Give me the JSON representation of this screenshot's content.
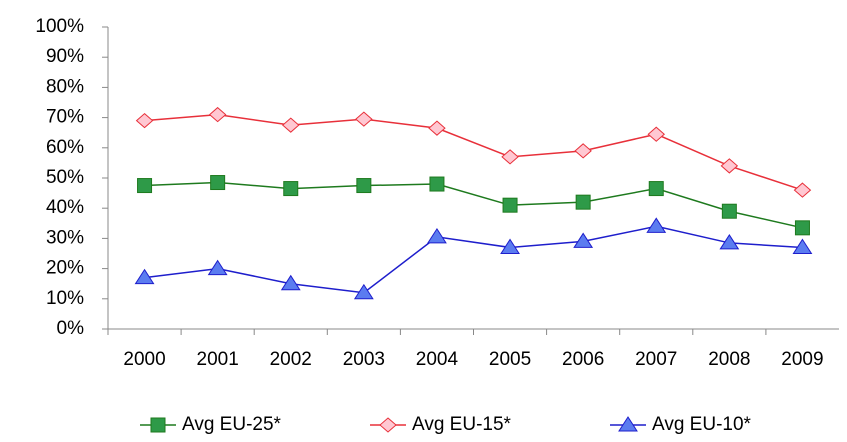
{
  "chart_data": {
    "type": "line",
    "categories": [
      "2000",
      "2001",
      "2002",
      "2003",
      "2004",
      "2005",
      "2006",
      "2007",
      "2008",
      "2009"
    ],
    "series": [
      {
        "name": "Avg EU-25*",
        "color": "#1e7a1e",
        "marker": "square",
        "marker_fill": "#2e9a48",
        "values": [
          47.5,
          48.5,
          46.5,
          47.5,
          48,
          41,
          42,
          46.5,
          39,
          33.5
        ]
      },
      {
        "name": "Avg EU-15*",
        "color": "#e8303a",
        "marker": "diamond",
        "marker_fill": "#ffc8d2",
        "values": [
          69,
          71,
          67.5,
          69.5,
          66.5,
          57,
          59,
          64.5,
          54,
          46
        ]
      },
      {
        "name": "Avg EU-10*",
        "color": "#1e1ecc",
        "marker": "triangle",
        "marker_fill": "#5b7cf0",
        "values": [
          17,
          20,
          15,
          12,
          30.5,
          27,
          29,
          34,
          28.5,
          27
        ]
      }
    ],
    "ylim": [
      0,
      100
    ],
    "yticks": [
      {
        "value": 0,
        "label": "0%"
      },
      {
        "value": 10,
        "label": "10%"
      },
      {
        "value": 20,
        "label": "20%"
      },
      {
        "value": 30,
        "label": "30%"
      },
      {
        "value": 40,
        "label": "40%"
      },
      {
        "value": 50,
        "label": "50%"
      },
      {
        "value": 60,
        "label": "60%"
      },
      {
        "value": 70,
        "label": "70%"
      },
      {
        "value": 80,
        "label": "80%"
      },
      {
        "value": 90,
        "label": "90%"
      },
      {
        "value": 100,
        "label": "100%"
      }
    ],
    "grid": false,
    "legend": "bottom"
  }
}
